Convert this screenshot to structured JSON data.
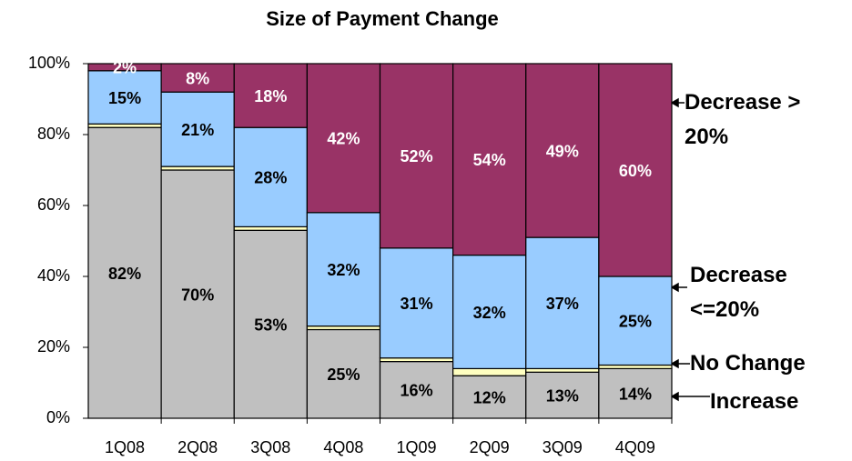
{
  "chart_data": {
    "type": "stacked_bar",
    "title": "Size of Payment Change",
    "categories": [
      "1Q08",
      "2Q08",
      "3Q08",
      "4Q08",
      "1Q09",
      "2Q09",
      "3Q09",
      "4Q09"
    ],
    "series": [
      {
        "name": "Increase",
        "color": "#c0c0c0",
        "values": [
          82,
          70,
          53,
          25,
          16,
          12,
          13,
          14
        ],
        "value_labels": [
          "82%",
          "70%",
          "53%",
          "25%",
          "16%",
          "12%",
          "13%",
          "14%"
        ]
      },
      {
        "name": "No Change",
        "color": "#ffffc0",
        "values": [
          1,
          1,
          1,
          1,
          1,
          2,
          1,
          1
        ]
      },
      {
        "name": "Decrease <=20%",
        "color": "#99ccff",
        "values": [
          15,
          21,
          28,
          32,
          31,
          32,
          37,
          25
        ],
        "value_labels": [
          "15%",
          "21%",
          "28%",
          "32%",
          "31%",
          "32%",
          "37%",
          "25%"
        ]
      },
      {
        "name": "Decrease > 20%",
        "color": "#993366",
        "values": [
          2,
          8,
          18,
          42,
          52,
          54,
          49,
          60
        ],
        "value_labels": [
          "2%",
          "8%",
          "18%",
          "42%",
          "52%",
          "54%",
          "49%",
          "60%"
        ]
      }
    ],
    "ylim": [
      0,
      100
    ],
    "yticks": [
      {
        "value": 0,
        "label": "0%"
      },
      {
        "value": 20,
        "label": "20%"
      },
      {
        "value": 40,
        "label": "40%"
      },
      {
        "value": 60,
        "label": "60%"
      },
      {
        "value": 80,
        "label": "80%"
      },
      {
        "value": 100,
        "label": "100%"
      }
    ],
    "grid": false
  }
}
